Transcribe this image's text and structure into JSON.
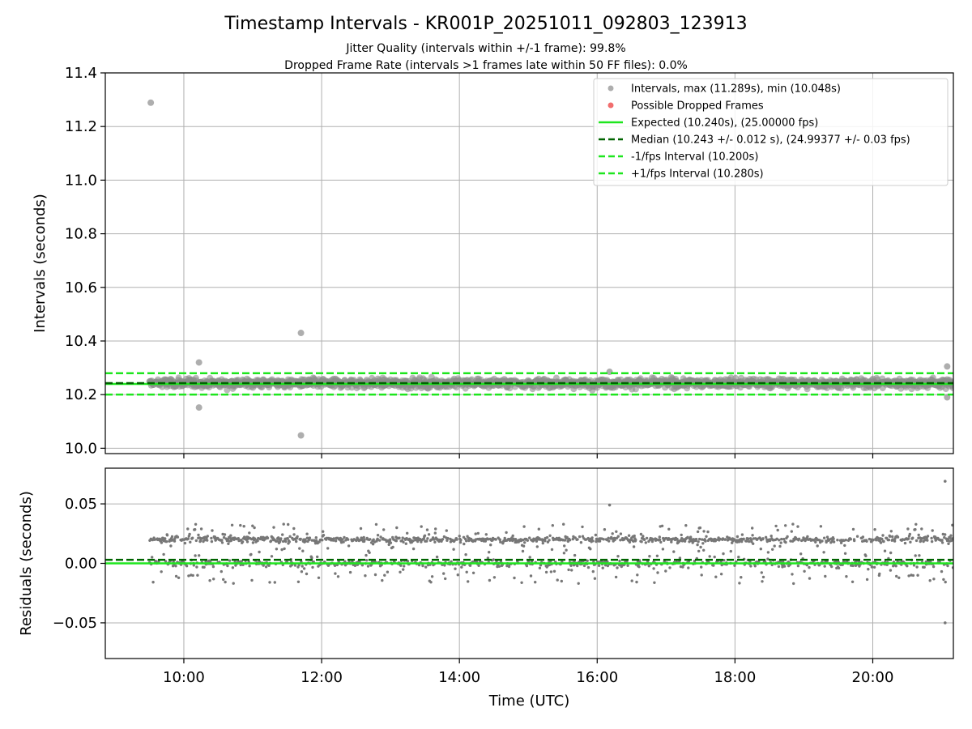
{
  "chart_data": [
    {
      "type": "scatter",
      "panel": "intervals",
      "title": "Timestamp Intervals - KR001P_20251011_092803_123913",
      "subtitle_lines": [
        "Jitter Quality (intervals within +/-1 frame): 99.8%",
        "Dropped Frame Rate (intervals >1 frames late within 50 FF files): 0.0%"
      ],
      "xlabel": "",
      "ylabel": "Intervals (seconds)",
      "xlim_hours": [
        8.86,
        21.17
      ],
      "ylim": [
        9.98,
        11.4
      ],
      "yticks": [
        10.0,
        10.2,
        10.4,
        10.6,
        10.8,
        11.0,
        11.2,
        11.4
      ],
      "ytick_labels": [
        "10.0",
        "10.2",
        "10.4",
        "10.6",
        "10.8",
        "11.0",
        "11.2",
        "11.4"
      ],
      "xticks_hours": [
        10,
        12,
        14,
        16,
        18,
        20
      ],
      "grid": true,
      "legend_position": "top-right",
      "data_start_hour": 9.5,
      "data_end_hour": 21.17,
      "band_center": 10.243,
      "band_spread": 0.012,
      "outliers": [
        {
          "x": 9.52,
          "y": 11.289
        },
        {
          "x": 11.7,
          "y": 10.43
        },
        {
          "x": 10.22,
          "y": 10.32
        },
        {
          "x": 10.22,
          "y": 10.152
        },
        {
          "x": 11.7,
          "y": 10.048
        },
        {
          "x": 21.08,
          "y": 10.305
        },
        {
          "x": 21.08,
          "y": 10.19
        },
        {
          "x": 16.18,
          "y": 10.285
        }
      ],
      "lines": [
        {
          "name": "expected",
          "y": 10.24,
          "color": "#1ee61e",
          "style": "solid"
        },
        {
          "name": "median",
          "y": 10.243,
          "color": "#006400",
          "style": "dashed"
        },
        {
          "name": "minus_fps",
          "y": 10.2,
          "color": "#1ee61e",
          "style": "dashed"
        },
        {
          "name": "plus_fps",
          "y": 10.28,
          "color": "#1ee61e",
          "style": "dashed"
        }
      ],
      "legend": [
        {
          "label": "Intervals, max (11.289s), min (10.048s)",
          "kind": "marker",
          "color": "#a0a0a0"
        },
        {
          "label": "Possible Dropped Frames",
          "kind": "marker",
          "color": "#ee5555"
        },
        {
          "label": "Expected (10.240s), (25.00000 fps)",
          "kind": "solid",
          "color": "#1ee61e"
        },
        {
          "label": "Median (10.243 +/- 0.012 s), (24.99377 +/- 0.03 fps)",
          "kind": "dashed",
          "color": "#006400"
        },
        {
          "label": "-1/fps Interval (10.200s)",
          "kind": "dashed",
          "color": "#1ee61e"
        },
        {
          "label": "+1/fps Interval (10.280s)",
          "kind": "dashed",
          "color": "#1ee61e"
        }
      ]
    },
    {
      "type": "scatter",
      "panel": "residuals",
      "xlabel": "Time (UTC)",
      "ylabel": "Residuals (seconds)",
      "xlim_hours": [
        8.86,
        21.17
      ],
      "ylim": [
        -0.08,
        0.08
      ],
      "yticks": [
        -0.05,
        0.0,
        0.05
      ],
      "ytick_labels": [
        "−0.05",
        "0.00",
        "0.05"
      ],
      "xticks_hours": [
        10,
        12,
        14,
        16,
        18,
        20
      ],
      "xtick_labels": [
        "10:00",
        "12:00",
        "14:00",
        "16:00",
        "18:00",
        "20:00"
      ],
      "grid": true,
      "upper_cluster_center": 0.02,
      "lower_cluster_center": 0.0,
      "outliers": [
        {
          "x": 21.05,
          "y": 0.069
        },
        {
          "x": 21.05,
          "y": -0.05
        },
        {
          "x": 16.18,
          "y": 0.049
        }
      ],
      "lines": [
        {
          "name": "zero",
          "y": 0.0,
          "color": "#1ee61e",
          "style": "solid"
        },
        {
          "name": "median_offset",
          "y": 0.003,
          "color": "#006400",
          "style": "dashed"
        }
      ]
    }
  ]
}
